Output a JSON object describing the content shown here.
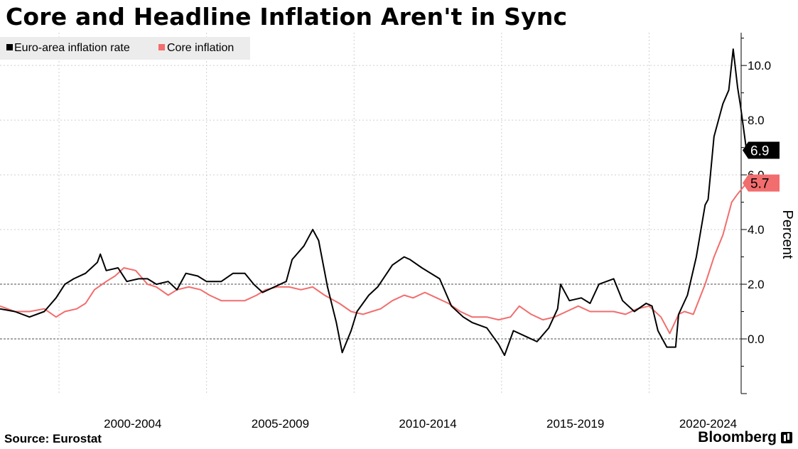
{
  "title": "Core and Headline Inflation Aren't in Sync",
  "source": "Source: Eurostat",
  "brand": "Bloomberg",
  "chart_data": {
    "type": "line",
    "title": "Core and Headline Inflation Aren't in Sync",
    "ylabel": "Percent",
    "xlabel": "",
    "x_range": [
      1998,
      2023.12
    ],
    "ylim": [
      -2,
      11.2
    ],
    "yticks": [
      0,
      2,
      4,
      6,
      8,
      10
    ],
    "ytick_labels": [
      "0.0",
      "2.0",
      "4.0",
      "6.0",
      "8.0",
      "10.0"
    ],
    "x_tick_labels": [
      "2000-2004",
      "2005-2009",
      "2010-2014",
      "2015-2019",
      "2020-2024"
    ],
    "x_label_centers": [
      2002.5,
      2007.5,
      2012.5,
      2017.5,
      2022.0
    ],
    "x_gridlines": [
      2000,
      2005,
      2010,
      2015,
      2020
    ],
    "grid": true,
    "legend_position": "top-left",
    "series": [
      {
        "name": "Euro-area inflation rate",
        "color": "#000000",
        "last_value_label": "6.9",
        "points": [
          [
            1998.0,
            1.1
          ],
          [
            1998.5,
            1.0
          ],
          [
            1999.0,
            0.8
          ],
          [
            1999.5,
            1.0
          ],
          [
            1999.9,
            1.5
          ],
          [
            2000.2,
            2.0
          ],
          [
            2000.5,
            2.2
          ],
          [
            2000.9,
            2.4
          ],
          [
            2001.3,
            2.8
          ],
          [
            2001.4,
            3.1
          ],
          [
            2001.6,
            2.5
          ],
          [
            2002.0,
            2.6
          ],
          [
            2002.3,
            2.1
          ],
          [
            2002.7,
            2.2
          ],
          [
            2003.0,
            2.2
          ],
          [
            2003.3,
            2.0
          ],
          [
            2003.7,
            2.1
          ],
          [
            2004.0,
            1.8
          ],
          [
            2004.3,
            2.4
          ],
          [
            2004.7,
            2.3
          ],
          [
            2005.0,
            2.1
          ],
          [
            2005.5,
            2.1
          ],
          [
            2005.9,
            2.4
          ],
          [
            2006.3,
            2.4
          ],
          [
            2006.6,
            2.0
          ],
          [
            2006.9,
            1.7
          ],
          [
            2007.3,
            1.9
          ],
          [
            2007.7,
            2.1
          ],
          [
            2007.9,
            2.9
          ],
          [
            2008.3,
            3.4
          ],
          [
            2008.6,
            4.0
          ],
          [
            2008.8,
            3.6
          ],
          [
            2009.1,
            1.9
          ],
          [
            2009.4,
            0.6
          ],
          [
            2009.6,
            -0.5
          ],
          [
            2009.9,
            0.3
          ],
          [
            2010.1,
            1.0
          ],
          [
            2010.5,
            1.6
          ],
          [
            2010.8,
            1.9
          ],
          [
            2011.3,
            2.7
          ],
          [
            2011.7,
            3.0
          ],
          [
            2011.9,
            2.9
          ],
          [
            2012.3,
            2.6
          ],
          [
            2012.9,
            2.2
          ],
          [
            2013.3,
            1.2
          ],
          [
            2013.7,
            0.8
          ],
          [
            2014.0,
            0.6
          ],
          [
            2014.5,
            0.4
          ],
          [
            2014.9,
            -0.2
          ],
          [
            2015.1,
            -0.6
          ],
          [
            2015.4,
            0.3
          ],
          [
            2015.8,
            0.1
          ],
          [
            2016.2,
            -0.1
          ],
          [
            2016.6,
            0.4
          ],
          [
            2016.9,
            1.1
          ],
          [
            2017.0,
            2.0
          ],
          [
            2017.3,
            1.4
          ],
          [
            2017.7,
            1.5
          ],
          [
            2018.0,
            1.3
          ],
          [
            2018.3,
            2.0
          ],
          [
            2018.8,
            2.2
          ],
          [
            2019.1,
            1.4
          ],
          [
            2019.5,
            1.0
          ],
          [
            2019.9,
            1.3
          ],
          [
            2020.1,
            1.2
          ],
          [
            2020.3,
            0.3
          ],
          [
            2020.6,
            -0.3
          ],
          [
            2020.9,
            -0.3
          ],
          [
            2021.0,
            0.9
          ],
          [
            2021.3,
            1.6
          ],
          [
            2021.6,
            3.0
          ],
          [
            2021.9,
            4.9
          ],
          [
            2022.0,
            5.1
          ],
          [
            2022.2,
            7.4
          ],
          [
            2022.5,
            8.6
          ],
          [
            2022.7,
            9.1
          ],
          [
            2022.85,
            10.6
          ],
          [
            2023.0,
            9.2
          ],
          [
            2023.1,
            8.5
          ],
          [
            2023.3,
            6.9
          ]
        ]
      },
      {
        "name": "Core inflation",
        "color": "#f26d6d",
        "last_value_label": "5.7",
        "points": [
          [
            1998.0,
            1.2
          ],
          [
            1998.5,
            1.0
          ],
          [
            1999.0,
            1.0
          ],
          [
            1999.5,
            1.1
          ],
          [
            1999.9,
            0.8
          ],
          [
            2000.2,
            1.0
          ],
          [
            2000.6,
            1.1
          ],
          [
            2000.9,
            1.3
          ],
          [
            2001.2,
            1.8
          ],
          [
            2001.6,
            2.1
          ],
          [
            2001.9,
            2.3
          ],
          [
            2002.2,
            2.6
          ],
          [
            2002.6,
            2.5
          ],
          [
            2003.0,
            2.0
          ],
          [
            2003.3,
            1.9
          ],
          [
            2003.7,
            1.6
          ],
          [
            2004.0,
            1.8
          ],
          [
            2004.4,
            1.9
          ],
          [
            2004.8,
            1.8
          ],
          [
            2005.1,
            1.6
          ],
          [
            2005.5,
            1.4
          ],
          [
            2005.9,
            1.4
          ],
          [
            2006.3,
            1.4
          ],
          [
            2006.7,
            1.6
          ],
          [
            2007.0,
            1.8
          ],
          [
            2007.4,
            1.9
          ],
          [
            2007.8,
            1.9
          ],
          [
            2008.2,
            1.8
          ],
          [
            2008.6,
            1.9
          ],
          [
            2009.0,
            1.6
          ],
          [
            2009.5,
            1.3
          ],
          [
            2009.9,
            1.0
          ],
          [
            2010.3,
            0.9
          ],
          [
            2010.6,
            1.0
          ],
          [
            2010.9,
            1.1
          ],
          [
            2011.3,
            1.4
          ],
          [
            2011.7,
            1.6
          ],
          [
            2012.0,
            1.5
          ],
          [
            2012.4,
            1.7
          ],
          [
            2012.8,
            1.5
          ],
          [
            2013.2,
            1.3
          ],
          [
            2013.6,
            1.0
          ],
          [
            2014.0,
            0.8
          ],
          [
            2014.5,
            0.8
          ],
          [
            2014.9,
            0.7
          ],
          [
            2015.3,
            0.8
          ],
          [
            2015.6,
            1.2
          ],
          [
            2016.0,
            0.9
          ],
          [
            2016.4,
            0.7
          ],
          [
            2016.8,
            0.8
          ],
          [
            2017.2,
            1.0
          ],
          [
            2017.6,
            1.2
          ],
          [
            2018.0,
            1.0
          ],
          [
            2018.4,
            1.0
          ],
          [
            2018.8,
            1.0
          ],
          [
            2019.2,
            0.9
          ],
          [
            2019.6,
            1.1
          ],
          [
            2020.0,
            1.2
          ],
          [
            2020.4,
            0.8
          ],
          [
            2020.7,
            0.2
          ],
          [
            2021.0,
            0.9
          ],
          [
            2021.2,
            1.0
          ],
          [
            2021.5,
            0.9
          ],
          [
            2021.9,
            2.0
          ],
          [
            2022.2,
            3.0
          ],
          [
            2022.5,
            3.8
          ],
          [
            2022.8,
            5.0
          ],
          [
            2023.0,
            5.3
          ],
          [
            2023.3,
            5.7
          ]
        ]
      }
    ]
  }
}
